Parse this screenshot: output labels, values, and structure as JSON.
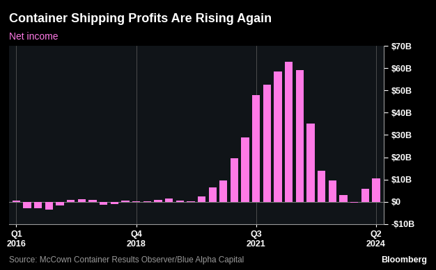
{
  "chart_data": {
    "type": "bar",
    "title": "Container Shipping Profits Are Rising Again",
    "subtitle": "Net income",
    "source": "Source: McCown Container Results Observer/Blue Alpha Capital",
    "logo": "Bloomberg",
    "categories": [
      "Q1\n2016",
      null,
      null,
      null,
      null,
      null,
      null,
      null,
      null,
      null,
      null,
      "Q4\n2018",
      null,
      null,
      null,
      null,
      null,
      null,
      null,
      null,
      null,
      null,
      "Q3\n2021",
      null,
      null,
      null,
      null,
      null,
      null,
      null,
      null,
      null,
      null,
      "Q2\n2024"
    ],
    "values": [
      0.7,
      -3,
      -3,
      -3.5,
      -1.5,
      1,
      1.2,
      1,
      -1.2,
      -1,
      0.5,
      0.3,
      0.3,
      0.8,
      1.5,
      0.5,
      0.2,
      2.5,
      6.5,
      9.5,
      19.5,
      29,
      48,
      52.5,
      58.5,
      63,
      59,
      35,
      14,
      9.5,
      3,
      -0.5,
      5.8,
      10.5
    ],
    "color": "#ff7ae6",
    "ylim": [
      -10,
      70
    ],
    "yticks": [
      {
        "value": -10,
        "label": "-$10B"
      },
      {
        "value": 0,
        "label": "$0"
      },
      {
        "value": 10,
        "label": "$10B"
      },
      {
        "value": 20,
        "label": "$20B"
      },
      {
        "value": 30,
        "label": "$30B"
      },
      {
        "value": 40,
        "label": "$40B"
      },
      {
        "value": 50,
        "label": "$50B"
      },
      {
        "value": 60,
        "label": "$60B"
      },
      {
        "value": 70,
        "label": "$70B"
      }
    ],
    "grid": true
  }
}
